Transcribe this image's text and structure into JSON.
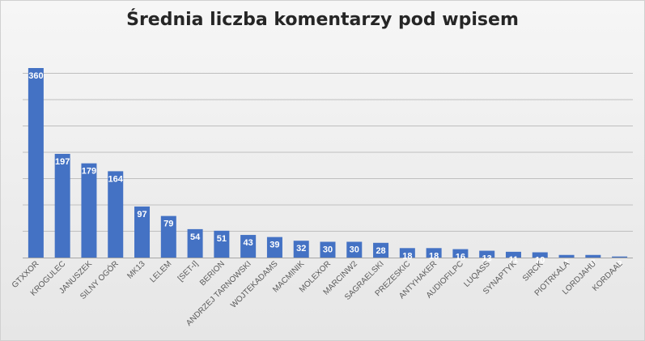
{
  "chart_data": {
    "type": "bar",
    "title": "Średnia liczba komentarzy pod wpisem",
    "xlabel": "",
    "ylabel": "",
    "ylim": [
      0,
      360
    ],
    "grid": true,
    "legend": "none",
    "bar_color": "#4472c4",
    "label_color": "#ffffff",
    "gridline_color": "#bfbfbf",
    "axis_label_color": "#595959",
    "categories": [
      "GTXXOR",
      "KROGULEC",
      "JANUSZEK",
      "SILNY OGÓR",
      "MK13",
      "LELEM",
      "[SET-I]",
      "BERION",
      "ANDRZEJ TARNOWSKI",
      "WOJTEKADAMS",
      "MACMINIK",
      "MOLEXOR",
      "MARCINW2",
      "SAGRAELSKI",
      "PREZESKIC",
      "ANTYHAKER",
      "AUDIOFILPC",
      "LUQASS",
      "SYNAPTYK",
      "SIRCK",
      "PIOTRKALA",
      "LORDJAHU",
      "KORDAAL"
    ],
    "values": [
      360,
      197,
      179,
      164,
      97,
      79,
      54,
      51,
      43,
      39,
      32,
      30,
      30,
      28,
      18,
      18,
      16,
      13,
      11,
      10,
      5,
      5,
      2
    ]
  }
}
